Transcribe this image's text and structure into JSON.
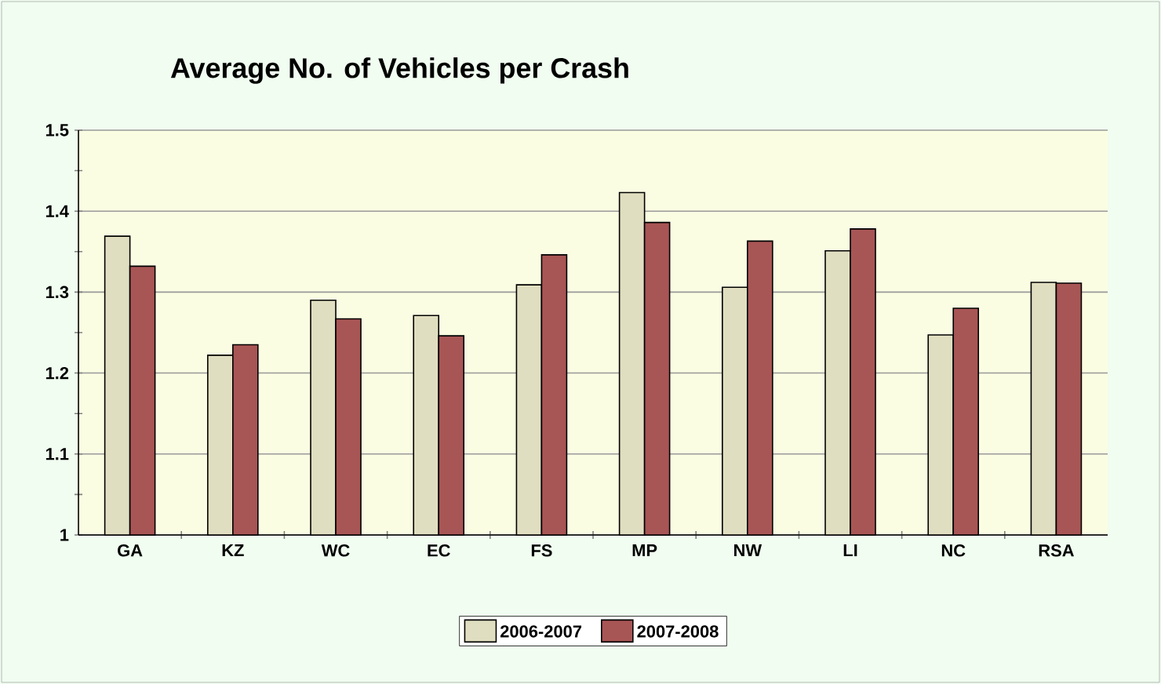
{
  "chart_data": {
    "type": "bar",
    "title": "Average No. of Vehicles per Crash",
    "categories": [
      "GA",
      "KZ",
      "WC",
      "EC",
      "FS",
      "MP",
      "NW",
      "LI",
      "NC",
      "RSA"
    ],
    "series": [
      {
        "name": "2006-2007",
        "color": "#e0dec0",
        "values": [
          1.369,
          1.222,
          1.29,
          1.271,
          1.309,
          1.423,
          1.306,
          1.351,
          1.247,
          1.312
        ]
      },
      {
        "name": "2007-2008",
        "color": "#a85555",
        "values": [
          1.332,
          1.235,
          1.267,
          1.246,
          1.346,
          1.386,
          1.363,
          1.378,
          1.28,
          1.311
        ]
      }
    ],
    "ylim": [
      1,
      1.5
    ],
    "yticks": [
      1,
      {
        "value": 1.05,
        "label": null
      },
      1.1,
      {
        "value": 1.15,
        "label": null
      },
      1.2,
      {
        "value": 1.25,
        "label": null
      },
      1.3,
      {
        "value": 1.35,
        "label": null
      },
      1.4,
      {
        "value": 1.45,
        "label": null
      },
      1.5
    ],
    "grid": "y",
    "legend": "bottom"
  }
}
